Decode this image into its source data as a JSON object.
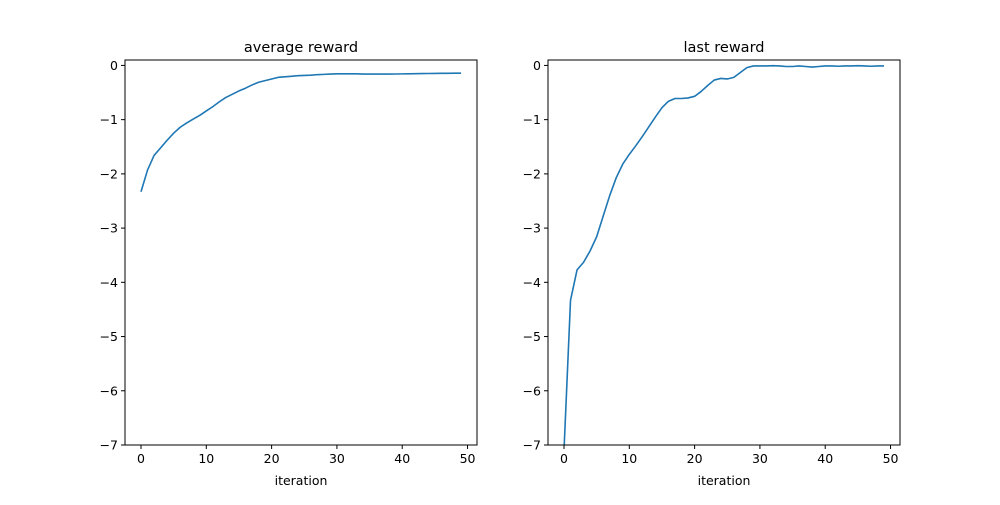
{
  "figure": {
    "line_color": "#1f77b4"
  },
  "chart_data": [
    {
      "type": "line",
      "title": "average reward",
      "xlabel": "iteration",
      "ylabel": "",
      "xlim": [
        -2.45,
        51.45
      ],
      "ylim": [
        -7,
        0.1
      ],
      "xticks": [
        0,
        10,
        20,
        30,
        40,
        50
      ],
      "yticks": [
        0,
        -1,
        -2,
        -3,
        -4,
        -5,
        -6,
        -7
      ],
      "grid": false,
      "series": [
        {
          "x": [
            0,
            1,
            2,
            3,
            4,
            5,
            6,
            7,
            8,
            9,
            10,
            11,
            12,
            13,
            14,
            15,
            16,
            17,
            18,
            19,
            20,
            21,
            22,
            23,
            24,
            25,
            26,
            27,
            28,
            29,
            30,
            31,
            32,
            33,
            34,
            35,
            36,
            37,
            38,
            39,
            40,
            41,
            42,
            43,
            44,
            45,
            46,
            47,
            48,
            49
          ],
          "values": [
            -2.33,
            -1.93,
            -1.66,
            -1.52,
            -1.38,
            -1.25,
            -1.14,
            -1.06,
            -0.99,
            -0.92,
            -0.84,
            -0.76,
            -0.67,
            -0.59,
            -0.53,
            -0.47,
            -0.42,
            -0.36,
            -0.31,
            -0.28,
            -0.25,
            -0.22,
            -0.21,
            -0.2,
            -0.19,
            -0.185,
            -0.18,
            -0.17,
            -0.165,
            -0.16,
            -0.155,
            -0.155,
            -0.155,
            -0.155,
            -0.16,
            -0.16,
            -0.16,
            -0.16,
            -0.16,
            -0.158,
            -0.156,
            -0.155,
            -0.153,
            -0.151,
            -0.149,
            -0.147,
            -0.146,
            -0.145,
            -0.144,
            -0.144
          ]
        }
      ]
    },
    {
      "type": "line",
      "title": "last reward",
      "xlabel": "iteration",
      "ylabel": "",
      "xlim": [
        -2.45,
        51.45
      ],
      "ylim": [
        -7,
        0.1
      ],
      "xticks": [
        0,
        10,
        20,
        30,
        40,
        50
      ],
      "yticks": [
        0,
        -1,
        -2,
        -3,
        -4,
        -5,
        -6,
        -7
      ],
      "grid": false,
      "series": [
        {
          "x": [
            0,
            1,
            2,
            3,
            4,
            5,
            6,
            7,
            8,
            9,
            10,
            11,
            12,
            13,
            14,
            15,
            16,
            17,
            18,
            19,
            20,
            21,
            22,
            23,
            24,
            25,
            26,
            27,
            28,
            29,
            30,
            31,
            32,
            33,
            34,
            35,
            36,
            37,
            38,
            39,
            40,
            41,
            42,
            43,
            44,
            45,
            46,
            47,
            48,
            49
          ],
          "values": [
            -7.1,
            -4.33,
            -3.77,
            -3.63,
            -3.42,
            -3.16,
            -2.78,
            -2.4,
            -2.07,
            -1.82,
            -1.64,
            -1.48,
            -1.31,
            -1.13,
            -0.95,
            -0.78,
            -0.66,
            -0.61,
            -0.61,
            -0.6,
            -0.57,
            -0.48,
            -0.37,
            -0.27,
            -0.24,
            -0.25,
            -0.22,
            -0.13,
            -0.04,
            -0.01,
            -0.01,
            -0.01,
            -0.005,
            -0.01,
            -0.02,
            -0.02,
            -0.01,
            -0.02,
            -0.03,
            -0.02,
            -0.01,
            -0.01,
            -0.015,
            -0.01,
            -0.01,
            -0.005,
            -0.01,
            -0.015,
            -0.01,
            -0.01
          ]
        }
      ]
    }
  ]
}
